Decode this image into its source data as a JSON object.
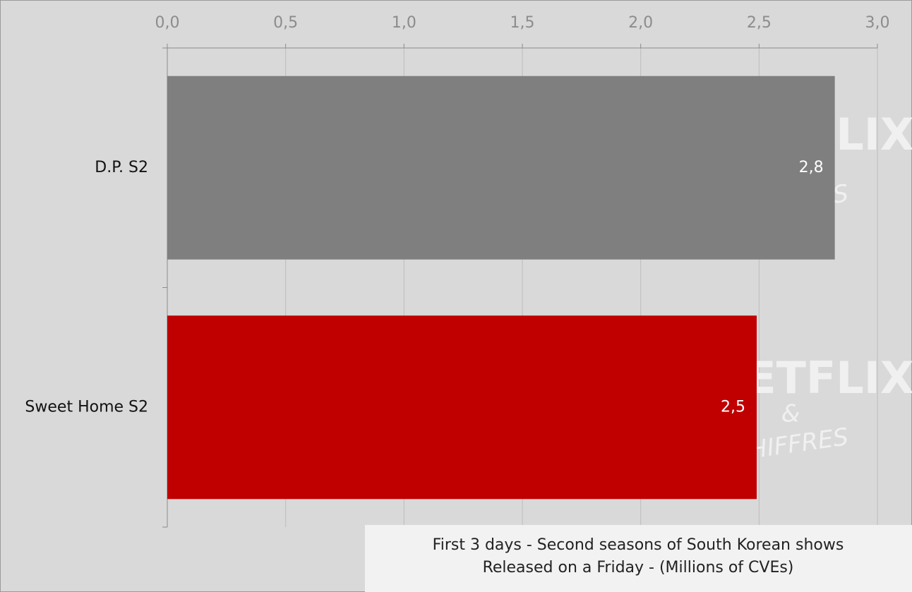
{
  "chart_data": {
    "type": "bar",
    "orientation": "horizontal",
    "title": [
      "First 3 days - Second seasons of South Korean shows",
      "Released on a Friday - (Millions of CVEs)"
    ],
    "categories": [
      "D.P. S2",
      "Sweet Home S2"
    ],
    "values": [
      2.82,
      2.49
    ],
    "value_labels": [
      "2,8",
      "2,5"
    ],
    "colors": [
      "#7f7f7f",
      "#c00000"
    ],
    "xlim": [
      0,
      3
    ],
    "xticks": [
      {
        "value": 0,
        "label": "0,0"
      },
      {
        "value": 0.5,
        "label": "0,5"
      },
      {
        "value": 1,
        "label": "1,0"
      },
      {
        "value": 1.5,
        "label": "1,5"
      },
      {
        "value": 2,
        "label": "2,0"
      },
      {
        "value": 2.5,
        "label": "2,5"
      },
      {
        "value": 3,
        "label": "3,0"
      }
    ],
    "grid": true,
    "watermark": [
      "NETFLIX",
      "&",
      "CHIFFRES"
    ]
  }
}
